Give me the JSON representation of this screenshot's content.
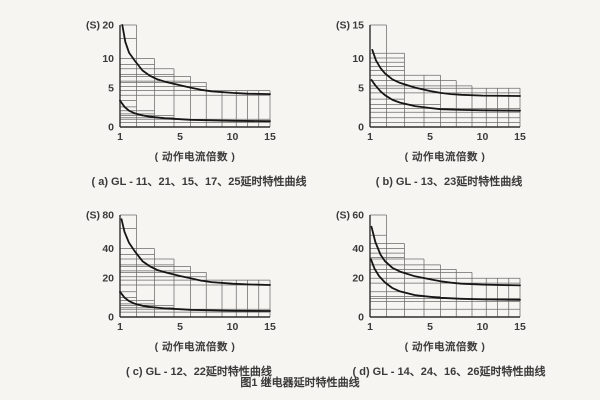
{
  "figure": {
    "title": "图1  继电器延时特性曲线"
  },
  "axis": {
    "x_label": "( 动作电流倍数 )",
    "y_unit": "(S)",
    "x_ticks": [
      1,
      5,
      10,
      15
    ]
  },
  "chart_data": [
    {
      "id": "a",
      "type": "line",
      "caption": "( a) GL - 11、21、15、17、25延时特性曲线",
      "x_ticks": [
        1,
        5,
        10,
        15
      ],
      "y_ticks": [
        0,
        5,
        10,
        20
      ],
      "x_label": "( 动作电流倍数 )",
      "ylabel": "(S)",
      "grid": {
        "vlines": [
          [
            2.1,
            20
          ],
          [
            3.3,
            10
          ],
          [
            4.6,
            8.3
          ],
          [
            6,
            7
          ],
          [
            7.5,
            6
          ],
          [
            9,
            4.7
          ],
          [
            10.5,
            4.7
          ],
          [
            12,
            4.7
          ],
          [
            13.5,
            4.7
          ],
          [
            15,
            4.7
          ]
        ],
        "hlines": [
          [
            20,
            2.1
          ],
          [
            16,
            2.1
          ],
          [
            10,
            3.3
          ],
          [
            9,
            3.3
          ],
          [
            8.3,
            4.6
          ],
          [
            7.3,
            4.6
          ],
          [
            7,
            6
          ],
          [
            6.2,
            6
          ],
          [
            6,
            7.5
          ],
          [
            5.3,
            7.5
          ],
          [
            4.7,
            15
          ],
          [
            4.1,
            15
          ],
          [
            3.4,
            2.1
          ],
          [
            2.6,
            2.1
          ],
          [
            2.1,
            3.3
          ],
          [
            1.7,
            3.3
          ],
          [
            1.5,
            4.6
          ],
          [
            1.2,
            4.6
          ],
          [
            1.0,
            15
          ],
          [
            0.6,
            15
          ]
        ]
      },
      "series": [
        {
          "name": "upper-limit curve",
          "points": [
            [
              1.15,
              20
            ],
            [
              1.35,
              15
            ],
            [
              1.6,
              11.8
            ],
            [
              2,
              9.6
            ],
            [
              2.5,
              8
            ],
            [
              3,
              7.1
            ],
            [
              3.5,
              6.5
            ],
            [
              4,
              6.1
            ],
            [
              5,
              5.5
            ],
            [
              6,
              5.1
            ],
            [
              7,
              4.8
            ],
            [
              8,
              4.6
            ],
            [
              10,
              4.4
            ],
            [
              12,
              4.3
            ],
            [
              15,
              4.25
            ]
          ]
        },
        {
          "name": "lower-limit curve",
          "points": [
            [
              1,
              3.4
            ],
            [
              1.3,
              2.6
            ],
            [
              1.6,
              2.1
            ],
            [
              2,
              1.75
            ],
            [
              2.5,
              1.5
            ],
            [
              3,
              1.33
            ],
            [
              4,
              1.12
            ],
            [
              5,
              1.0
            ],
            [
              6,
              0.93
            ],
            [
              8,
              0.85
            ],
            [
              10,
              0.8
            ],
            [
              15,
              0.75
            ]
          ]
        }
      ]
    },
    {
      "id": "b",
      "type": "line",
      "caption": "( b) GL - 13、23延时特性曲线",
      "x_ticks": [
        1,
        5,
        10,
        15
      ],
      "y_ticks": [
        0,
        5,
        10,
        15
      ],
      "x_label": "( 动作电流倍数 )",
      "ylabel": "(S)",
      "grid": {
        "vlines": [
          [
            2.1,
            15
          ],
          [
            3.3,
            10.8
          ],
          [
            4.6,
            7.2
          ],
          [
            6,
            7.2
          ],
          [
            7.5,
            6.3
          ],
          [
            9,
            5.4
          ],
          [
            10.5,
            5
          ],
          [
            12,
            5
          ],
          [
            13.5,
            5
          ],
          [
            15,
            5
          ]
        ],
        "hlines": [
          [
            15,
            2.1
          ],
          [
            10.8,
            3.3
          ],
          [
            10.1,
            3.3
          ],
          [
            9.4,
            3.3
          ],
          [
            8.7,
            3.3
          ],
          [
            8.0,
            3.3
          ],
          [
            7.2,
            6
          ],
          [
            6.3,
            7.5
          ],
          [
            5.4,
            9
          ],
          [
            5,
            15
          ],
          [
            4.4,
            15
          ],
          [
            3.6,
            3.3
          ],
          [
            2.9,
            6
          ],
          [
            2.4,
            15
          ],
          [
            1.9,
            15
          ],
          [
            1.2,
            15
          ],
          [
            0.6,
            15
          ]
        ]
      },
      "series": [
        {
          "name": "upper-limit curve",
          "points": [
            [
              1.15,
              11.3
            ],
            [
              1.4,
              9.7
            ],
            [
              1.7,
              8.4
            ],
            [
              2,
              7.5
            ],
            [
              2.5,
              6.5
            ],
            [
              3,
              5.9
            ],
            [
              4,
              5.1
            ],
            [
              5,
              4.65
            ],
            [
              6,
              4.4
            ],
            [
              7,
              4.25
            ],
            [
              8,
              4.15
            ],
            [
              10,
              4.05
            ],
            [
              15,
              4.0
            ]
          ]
        },
        {
          "name": "lower-limit curve",
          "points": [
            [
              1.1,
              6.4
            ],
            [
              1.35,
              5.5
            ],
            [
              1.7,
              4.6
            ],
            [
              2,
              4.1
            ],
            [
              2.5,
              3.5
            ],
            [
              3,
              3.15
            ],
            [
              4,
              2.7
            ],
            [
              5,
              2.45
            ],
            [
              6,
              2.3
            ],
            [
              8,
              2.2
            ],
            [
              10,
              2.15
            ],
            [
              15,
              2.1
            ]
          ]
        }
      ]
    },
    {
      "id": "c",
      "type": "line",
      "caption": "( c) GL - 12、22延时特性曲线",
      "x_ticks": [
        1,
        5,
        10,
        15
      ],
      "y_ticks": [
        0,
        20,
        40,
        80
      ],
      "x_label": "( 动作电流倍数 )",
      "ylabel": "(S)",
      "grid": {
        "vlines": [
          [
            2.1,
            80
          ],
          [
            3.3,
            40
          ],
          [
            4.6,
            33
          ],
          [
            6,
            28
          ],
          [
            7.5,
            24
          ],
          [
            9,
            19
          ],
          [
            10.5,
            19
          ],
          [
            12,
            19
          ],
          [
            13.5,
            19
          ],
          [
            15,
            19
          ]
        ],
        "hlines": [
          [
            80,
            2.1
          ],
          [
            64,
            2.1
          ],
          [
            40,
            3.3
          ],
          [
            36,
            3.3
          ],
          [
            33,
            4.6
          ],
          [
            29,
            4.6
          ],
          [
            28,
            6
          ],
          [
            25,
            6
          ],
          [
            24,
            7.5
          ],
          [
            21,
            7.5
          ],
          [
            19,
            15
          ],
          [
            16.5,
            15
          ],
          [
            13,
            2.1
          ],
          [
            10,
            2.1
          ],
          [
            8.5,
            3.3
          ],
          [
            6.8,
            3.3
          ],
          [
            6,
            4.6
          ],
          [
            4.8,
            4.6
          ],
          [
            4,
            15
          ],
          [
            2.5,
            15
          ]
        ]
      },
      "series": [
        {
          "name": "upper-limit curve",
          "points": [
            [
              1.1,
              75
            ],
            [
              1.3,
              60
            ],
            [
              1.6,
              47
            ],
            [
              2,
              38
            ],
            [
              2.5,
              31.5
            ],
            [
              3,
              28
            ],
            [
              3.5,
              25.5
            ],
            [
              4,
              24
            ],
            [
              5,
              21.5
            ],
            [
              6,
              20
            ],
            [
              7,
              18.8
            ],
            [
              8,
              18
            ],
            [
              10,
              17.2
            ],
            [
              12,
              16.8
            ],
            [
              15,
              16.5
            ]
          ]
        },
        {
          "name": "lower-limit curve",
          "points": [
            [
              1,
              13
            ],
            [
              1.3,
              10
            ],
            [
              1.6,
              8.2
            ],
            [
              2,
              6.8
            ],
            [
              2.5,
              5.8
            ],
            [
              3,
              5.2
            ],
            [
              4,
              4.4
            ],
            [
              5,
              4.0
            ],
            [
              6,
              3.7
            ],
            [
              8,
              3.4
            ],
            [
              10,
              3.2
            ],
            [
              15,
              3.1
            ]
          ]
        }
      ]
    },
    {
      "id": "d",
      "type": "line",
      "caption": "( d) GL - 14、24、16、26延时特性曲线",
      "x_ticks": [
        1,
        5,
        10,
        15
      ],
      "y_ticks": [
        0,
        20,
        40,
        60
      ],
      "x_label": "( 动作电流倍数 )",
      "ylabel": "(S)",
      "grid": {
        "vlines": [
          [
            2.1,
            60
          ],
          [
            3.3,
            43
          ],
          [
            4.6,
            33
          ],
          [
            6,
            29
          ],
          [
            7.5,
            26
          ],
          [
            9,
            24
          ],
          [
            10.5,
            20
          ],
          [
            12,
            20
          ],
          [
            13.5,
            20
          ],
          [
            15,
            20
          ]
        ],
        "hlines": [
          [
            60,
            2.1
          ],
          [
            48,
            2.1
          ],
          [
            43,
            3.3
          ],
          [
            40,
            3.3
          ],
          [
            37,
            3.3
          ],
          [
            34,
            3.3
          ],
          [
            33,
            4.6
          ],
          [
            29,
            6
          ],
          [
            26,
            7.5
          ],
          [
            24,
            9
          ],
          [
            20,
            15
          ],
          [
            17.5,
            15
          ],
          [
            13,
            3.3
          ],
          [
            10.5,
            6
          ],
          [
            9.5,
            15
          ],
          [
            8,
            15
          ],
          [
            4,
            15
          ]
        ]
      },
      "series": [
        {
          "name": "upper-limit curve",
          "points": [
            [
              1.1,
              53
            ],
            [
              1.35,
              44
            ],
            [
              1.7,
              36
            ],
            [
              2,
              31.5
            ],
            [
              2.5,
              27
            ],
            [
              3,
              24.5
            ],
            [
              4,
              21.3
            ],
            [
              5,
              19.5
            ],
            [
              6,
              18.4
            ],
            [
              7,
              17.7
            ],
            [
              8,
              17.2
            ],
            [
              10,
              16.7
            ],
            [
              15,
              16.3
            ]
          ]
        },
        {
          "name": "lower-limit curve",
          "points": [
            [
              1.05,
              33
            ],
            [
              1.3,
              26.5
            ],
            [
              1.6,
              21.5
            ],
            [
              2,
              17.8
            ],
            [
              2.5,
              14.9
            ],
            [
              3,
              13.2
            ],
            [
              4,
              11.3
            ],
            [
              5,
              10.4
            ],
            [
              6,
              9.9
            ],
            [
              8,
              9.4
            ],
            [
              10,
              9.1
            ],
            [
              15,
              8.9
            ]
          ]
        }
      ]
    }
  ]
}
